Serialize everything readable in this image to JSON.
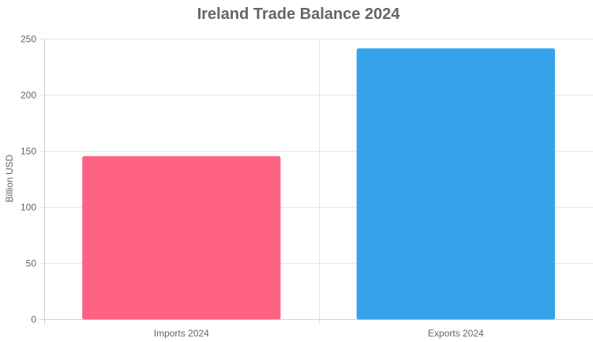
{
  "chart_data": {
    "type": "bar",
    "title": "Ireland Trade Balance 2024",
    "xlabel": "",
    "ylabel": "Billion USD",
    "categories": [
      "Imports 2024",
      "Exports 2024"
    ],
    "values": [
      145,
      241
    ],
    "colors": [
      "#ff6384",
      "#36a2eb"
    ],
    "ylim": [
      0,
      250
    ],
    "yticks": [
      0,
      50,
      100,
      150,
      200,
      250
    ],
    "grid": true,
    "legend": "none"
  }
}
